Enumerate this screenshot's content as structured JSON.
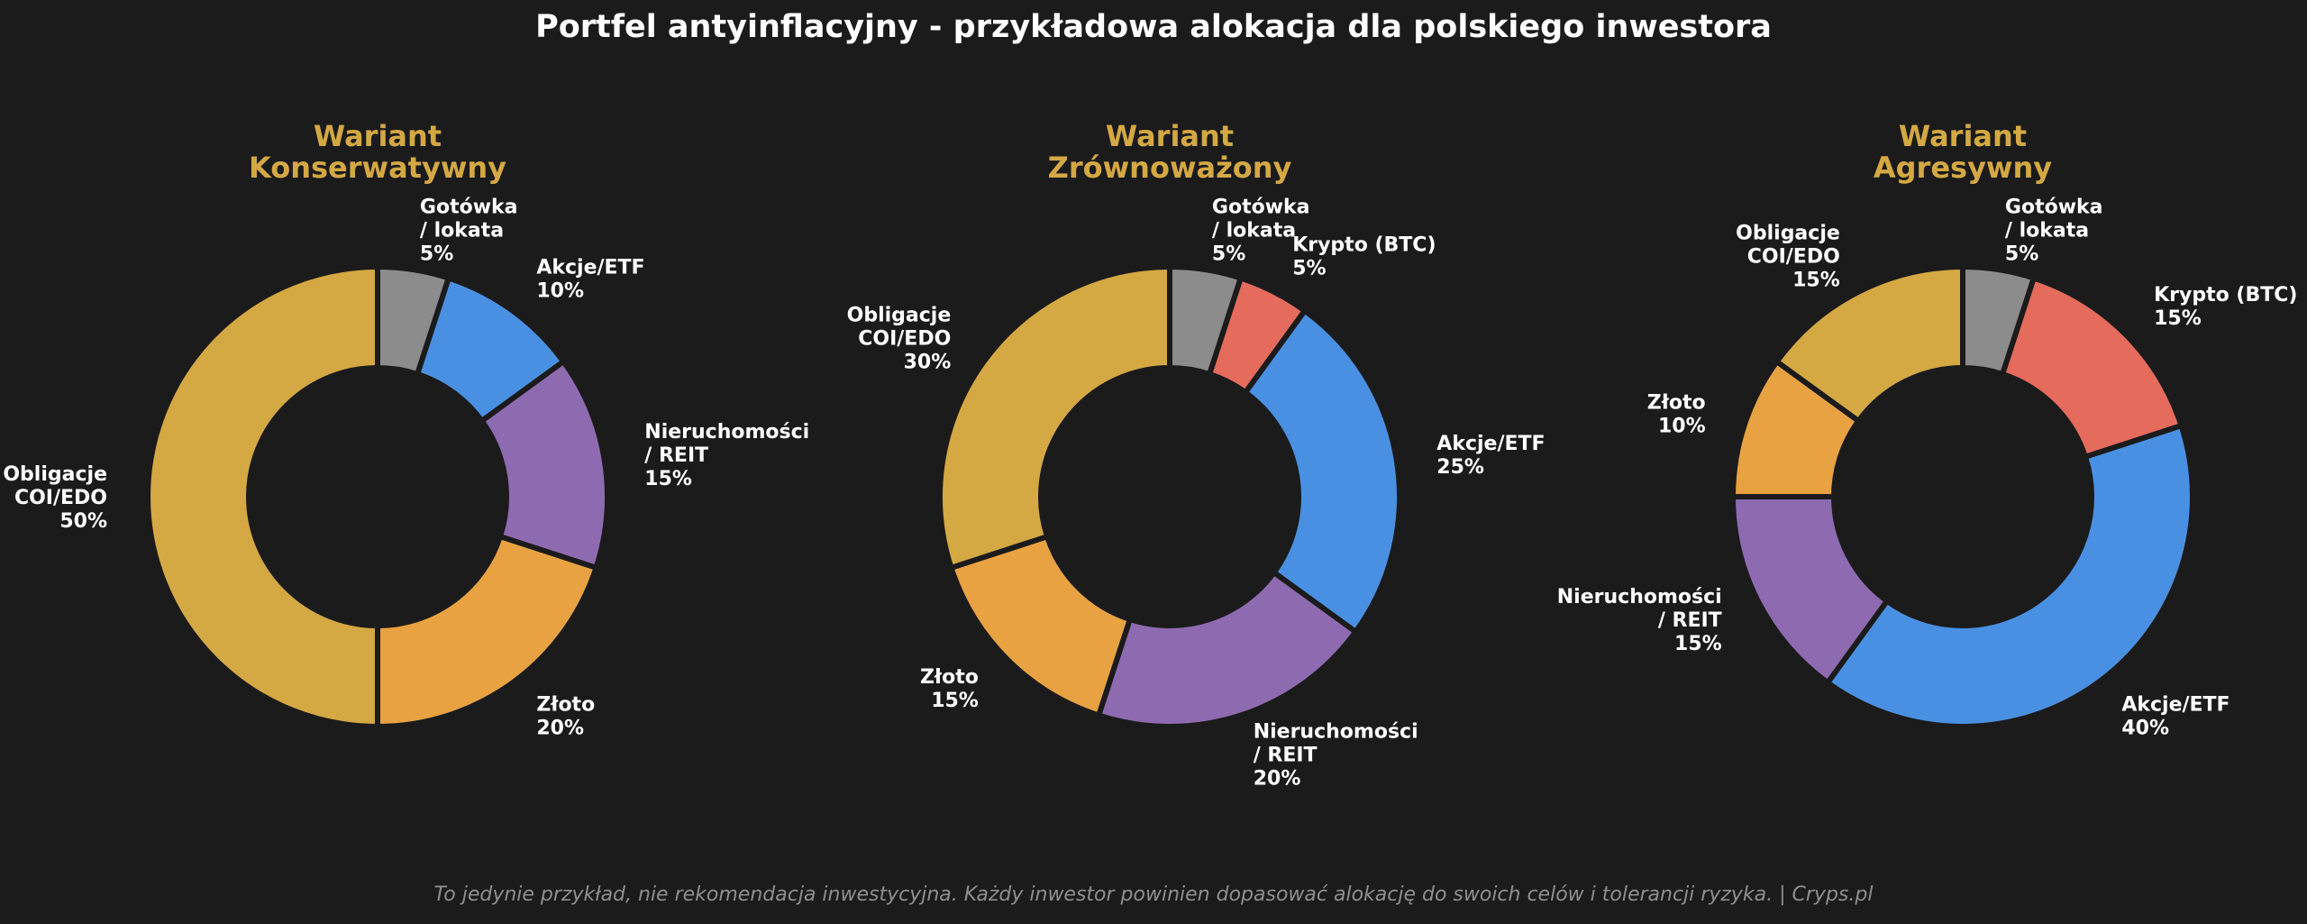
{
  "title": "Portfel antyinflacyjny - przykładowa alokacja dla polskiego inwestora",
  "footer": "To jedynie przykład, nie rekomendacja inwestycyjna. Każdy inwestor powinien dopasować alokację do swoich celów i tolerancji ryzyka. | Cryps.pl",
  "colors": {
    "background": "#1b1b1b",
    "subtitle": "#d4a843",
    "label": "#ffffff",
    "footer": "#8f8f8f",
    "Gotówka": "#8c8c8c",
    "Krypto": "#e56b5d",
    "Akcje": "#4a90e2",
    "Nieruchomości": "#8e6bb0",
    "Złoto": "#e8a242",
    "Obligacje": "#d4a843"
  },
  "chart_data": [
    {
      "type": "pie",
      "subtitle": [
        "Wariant",
        "Konserwatywny"
      ],
      "slices": [
        {
          "key": "Gotówka",
          "label": [
            "Gotówka",
            "/ lokata",
            "5%"
          ],
          "value": 5
        },
        {
          "key": "Akcje",
          "label": [
            "Akcje/ETF",
            "10%"
          ],
          "value": 10
        },
        {
          "key": "Nieruchomości",
          "label": [
            "Nieruchomości",
            "/ REIT",
            "15%"
          ],
          "value": 15
        },
        {
          "key": "Złoto",
          "label": [
            "Złoto",
            "20%"
          ],
          "value": 20
        },
        {
          "key": "Obligacje",
          "label": [
            "Obligacje",
            "COI/EDO",
            "50%"
          ],
          "value": 50
        }
      ]
    },
    {
      "type": "pie",
      "subtitle": [
        "Wariant",
        "Zrównoważony"
      ],
      "slices": [
        {
          "key": "Gotówka",
          "label": [
            "Gotówka",
            "/ lokata",
            "5%"
          ],
          "value": 5
        },
        {
          "key": "Krypto",
          "label": [
            "Krypto (BTC)",
            "5%"
          ],
          "value": 5
        },
        {
          "key": "Akcje",
          "label": [
            "Akcje/ETF",
            "25%"
          ],
          "value": 25
        },
        {
          "key": "Nieruchomości",
          "label": [
            "Nieruchomości",
            "/ REIT",
            "20%"
          ],
          "value": 20
        },
        {
          "key": "Złoto",
          "label": [
            "Złoto",
            "15%"
          ],
          "value": 15
        },
        {
          "key": "Obligacje",
          "label": [
            "Obligacje",
            "COI/EDO",
            "30%"
          ],
          "value": 30
        }
      ]
    },
    {
      "type": "pie",
      "subtitle": [
        "Wariant",
        "Agresywny"
      ],
      "slices": [
        {
          "key": "Gotówka",
          "label": [
            "Gotówka",
            "/ lokata",
            "5%"
          ],
          "value": 5
        },
        {
          "key": "Krypto",
          "label": [
            "Krypto (BTC)",
            "15%"
          ],
          "value": 15
        },
        {
          "key": "Akcje",
          "label": [
            "Akcje/ETF",
            "40%"
          ],
          "value": 40
        },
        {
          "key": "Nieruchomości",
          "label": [
            "Nieruchomości",
            "/ REIT",
            "15%"
          ],
          "value": 15
        },
        {
          "key": "Złoto",
          "label": [
            "Złoto",
            "10%"
          ],
          "value": 10
        },
        {
          "key": "Obligacje",
          "label": [
            "Obligacje",
            "COI/EDO",
            "15%"
          ],
          "value": 15
        }
      ]
    }
  ]
}
